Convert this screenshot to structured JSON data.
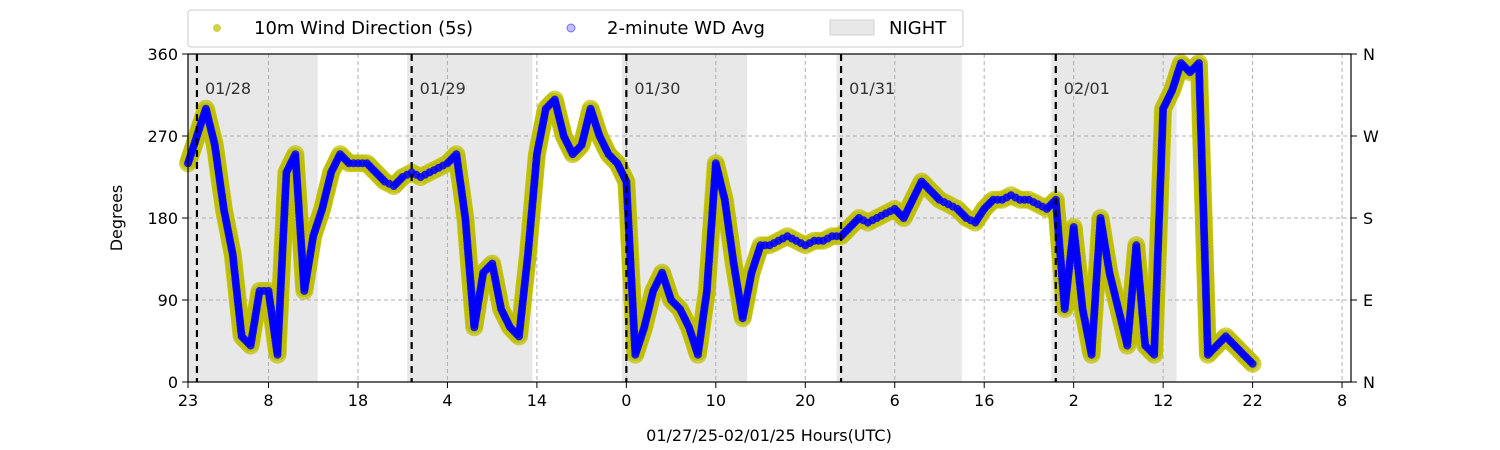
{
  "chart_data": {
    "type": "scatter",
    "title": "",
    "xlabel": "01/27/25-02/01/25  Hours(UTC)",
    "ylabel": "Degrees",
    "x_range_hours": [
      23,
      153
    ],
    "x_ticks": [
      {
        "x": 23,
        "label": "23"
      },
      {
        "x": 32,
        "label": "8"
      },
      {
        "x": 42,
        "label": "18"
      },
      {
        "x": 52,
        "label": "4"
      },
      {
        "x": 62,
        "label": "14"
      },
      {
        "x": 72,
        "label": "0"
      },
      {
        "x": 82,
        "label": "10"
      },
      {
        "x": 92,
        "label": "20"
      },
      {
        "x": 102,
        "label": "6"
      },
      {
        "x": 112,
        "label": "16"
      },
      {
        "x": 122,
        "label": "2"
      },
      {
        "x": 132,
        "label": "12"
      },
      {
        "x": 142,
        "label": "22"
      },
      {
        "x": 152,
        "label": "8"
      }
    ],
    "ylim": [
      0,
      360
    ],
    "y_ticks": [
      0,
      90,
      180,
      270,
      360
    ],
    "y2_ticks": [
      {
        "value": 0,
        "label": "N"
      },
      {
        "value": 90,
        "label": "E"
      },
      {
        "value": 180,
        "label": "S"
      },
      {
        "value": 270,
        "label": "W"
      },
      {
        "value": 360,
        "label": "N"
      }
    ],
    "grid": true,
    "legend_position": "top-center",
    "legend": [
      {
        "label": "10m Wind Direction (5s)",
        "color": "#bfbf00",
        "marker": "circle"
      },
      {
        "label": "2-minute WD Avg",
        "color": "#0000ff",
        "marker": "hollow-circle"
      },
      {
        "label": "NIGHT",
        "color": "#e8e8e8",
        "marker": "patch"
      }
    ],
    "night_periods_hours": [
      [
        23,
        37.5
      ],
      [
        47.5,
        61.5
      ],
      [
        71.5,
        85.5
      ],
      [
        95.5,
        109.5
      ],
      [
        119.5,
        133.5
      ]
    ],
    "day_boundaries": [
      {
        "x": 24,
        "label": "01/28"
      },
      {
        "x": 48,
        "label": "01/29"
      },
      {
        "x": 72,
        "label": "01/30"
      },
      {
        "x": 96,
        "label": "01/31"
      },
      {
        "x": 120,
        "label": "02/01"
      }
    ],
    "series": [
      {
        "name": "10m Wind Direction (5s)",
        "color": "#bfbf00",
        "x": [
          23,
          24,
          25,
          26,
          27,
          28,
          29,
          30,
          31,
          32,
          33,
          34,
          35,
          36,
          37,
          38,
          39,
          40,
          41,
          42,
          43,
          44,
          45,
          46,
          47,
          48,
          49,
          50,
          51,
          52,
          53,
          54,
          55,
          56,
          57,
          58,
          59,
          60,
          61,
          62,
          63,
          64,
          65,
          66,
          67,
          68,
          69,
          70,
          71,
          72,
          73,
          74,
          75,
          76,
          77,
          78,
          79,
          80,
          81,
          82,
          83,
          84,
          85,
          86,
          87,
          88,
          89,
          90,
          91,
          92,
          93,
          94,
          95,
          96,
          97,
          98,
          99,
          100,
          101,
          102,
          103,
          104,
          105,
          106,
          107,
          108,
          109,
          110,
          111,
          112,
          113,
          114,
          115,
          116,
          117,
          118,
          119,
          120,
          121,
          122,
          123,
          124,
          125,
          126,
          127,
          128,
          129,
          130,
          131,
          132,
          133,
          134,
          135,
          136,
          137,
          138,
          139,
          140,
          141,
          142
        ],
        "y": [
          240,
          270,
          300,
          260,
          190,
          140,
          50,
          40,
          100,
          100,
          30,
          230,
          250,
          100,
          160,
          190,
          230,
          250,
          240,
          240,
          240,
          230,
          220,
          215,
          225,
          230,
          225,
          230,
          235,
          240,
          250,
          180,
          60,
          120,
          130,
          80,
          60,
          50,
          140,
          250,
          300,
          310,
          270,
          250,
          260,
          300,
          270,
          250,
          240,
          220,
          30,
          60,
          100,
          120,
          90,
          80,
          60,
          30,
          100,
          240,
          200,
          130,
          70,
          120,
          150,
          150,
          155,
          160,
          155,
          150,
          155,
          155,
          160,
          160,
          170,
          180,
          175,
          180,
          185,
          190,
          180,
          200,
          220,
          210,
          200,
          195,
          190,
          180,
          175,
          190,
          200,
          200,
          205,
          200,
          200,
          195,
          190,
          200,
          80,
          170,
          80,
          30,
          180,
          120,
          80,
          40,
          150,
          40,
          30,
          300,
          320,
          350,
          340,
          350,
          30,
          40,
          50,
          40,
          30,
          20
        ]
      },
      {
        "name": "2-minute WD Avg",
        "color": "#0000ff",
        "x": [
          23,
          24,
          25,
          26,
          27,
          28,
          29,
          30,
          31,
          32,
          33,
          34,
          35,
          36,
          37,
          38,
          39,
          40,
          41,
          42,
          43,
          44,
          45,
          46,
          47,
          48,
          49,
          50,
          51,
          52,
          53,
          54,
          55,
          56,
          57,
          58,
          59,
          60,
          61,
          62,
          63,
          64,
          65,
          66,
          67,
          68,
          69,
          70,
          71,
          72,
          73,
          74,
          75,
          76,
          77,
          78,
          79,
          80,
          81,
          82,
          83,
          84,
          85,
          86,
          87,
          88,
          89,
          90,
          91,
          92,
          93,
          94,
          95,
          96,
          97,
          98,
          99,
          100,
          101,
          102,
          103,
          104,
          105,
          106,
          107,
          108,
          109,
          110,
          111,
          112,
          113,
          114,
          115,
          116,
          117,
          118,
          119,
          120,
          121,
          122,
          123,
          124,
          125,
          126,
          127,
          128,
          129,
          130,
          131,
          132,
          133,
          134,
          135,
          136,
          137,
          138,
          139,
          140,
          141,
          142
        ],
        "y": [
          240,
          270,
          300,
          260,
          190,
          140,
          50,
          40,
          100,
          100,
          30,
          230,
          250,
          100,
          160,
          190,
          230,
          250,
          240,
          240,
          240,
          230,
          220,
          215,
          225,
          230,
          225,
          230,
          235,
          240,
          250,
          180,
          60,
          120,
          130,
          80,
          60,
          50,
          140,
          250,
          300,
          310,
          270,
          250,
          260,
          300,
          270,
          250,
          240,
          220,
          30,
          60,
          100,
          120,
          90,
          80,
          60,
          30,
          100,
          240,
          200,
          130,
          70,
          120,
          150,
          150,
          155,
          160,
          155,
          150,
          155,
          155,
          160,
          160,
          170,
          180,
          175,
          180,
          185,
          190,
          180,
          200,
          220,
          210,
          200,
          195,
          190,
          180,
          175,
          190,
          200,
          200,
          205,
          200,
          200,
          195,
          190,
          200,
          80,
          170,
          80,
          30,
          180,
          120,
          80,
          40,
          150,
          40,
          30,
          300,
          320,
          350,
          340,
          350,
          30,
          40,
          50,
          40,
          30,
          20
        ]
      }
    ]
  }
}
